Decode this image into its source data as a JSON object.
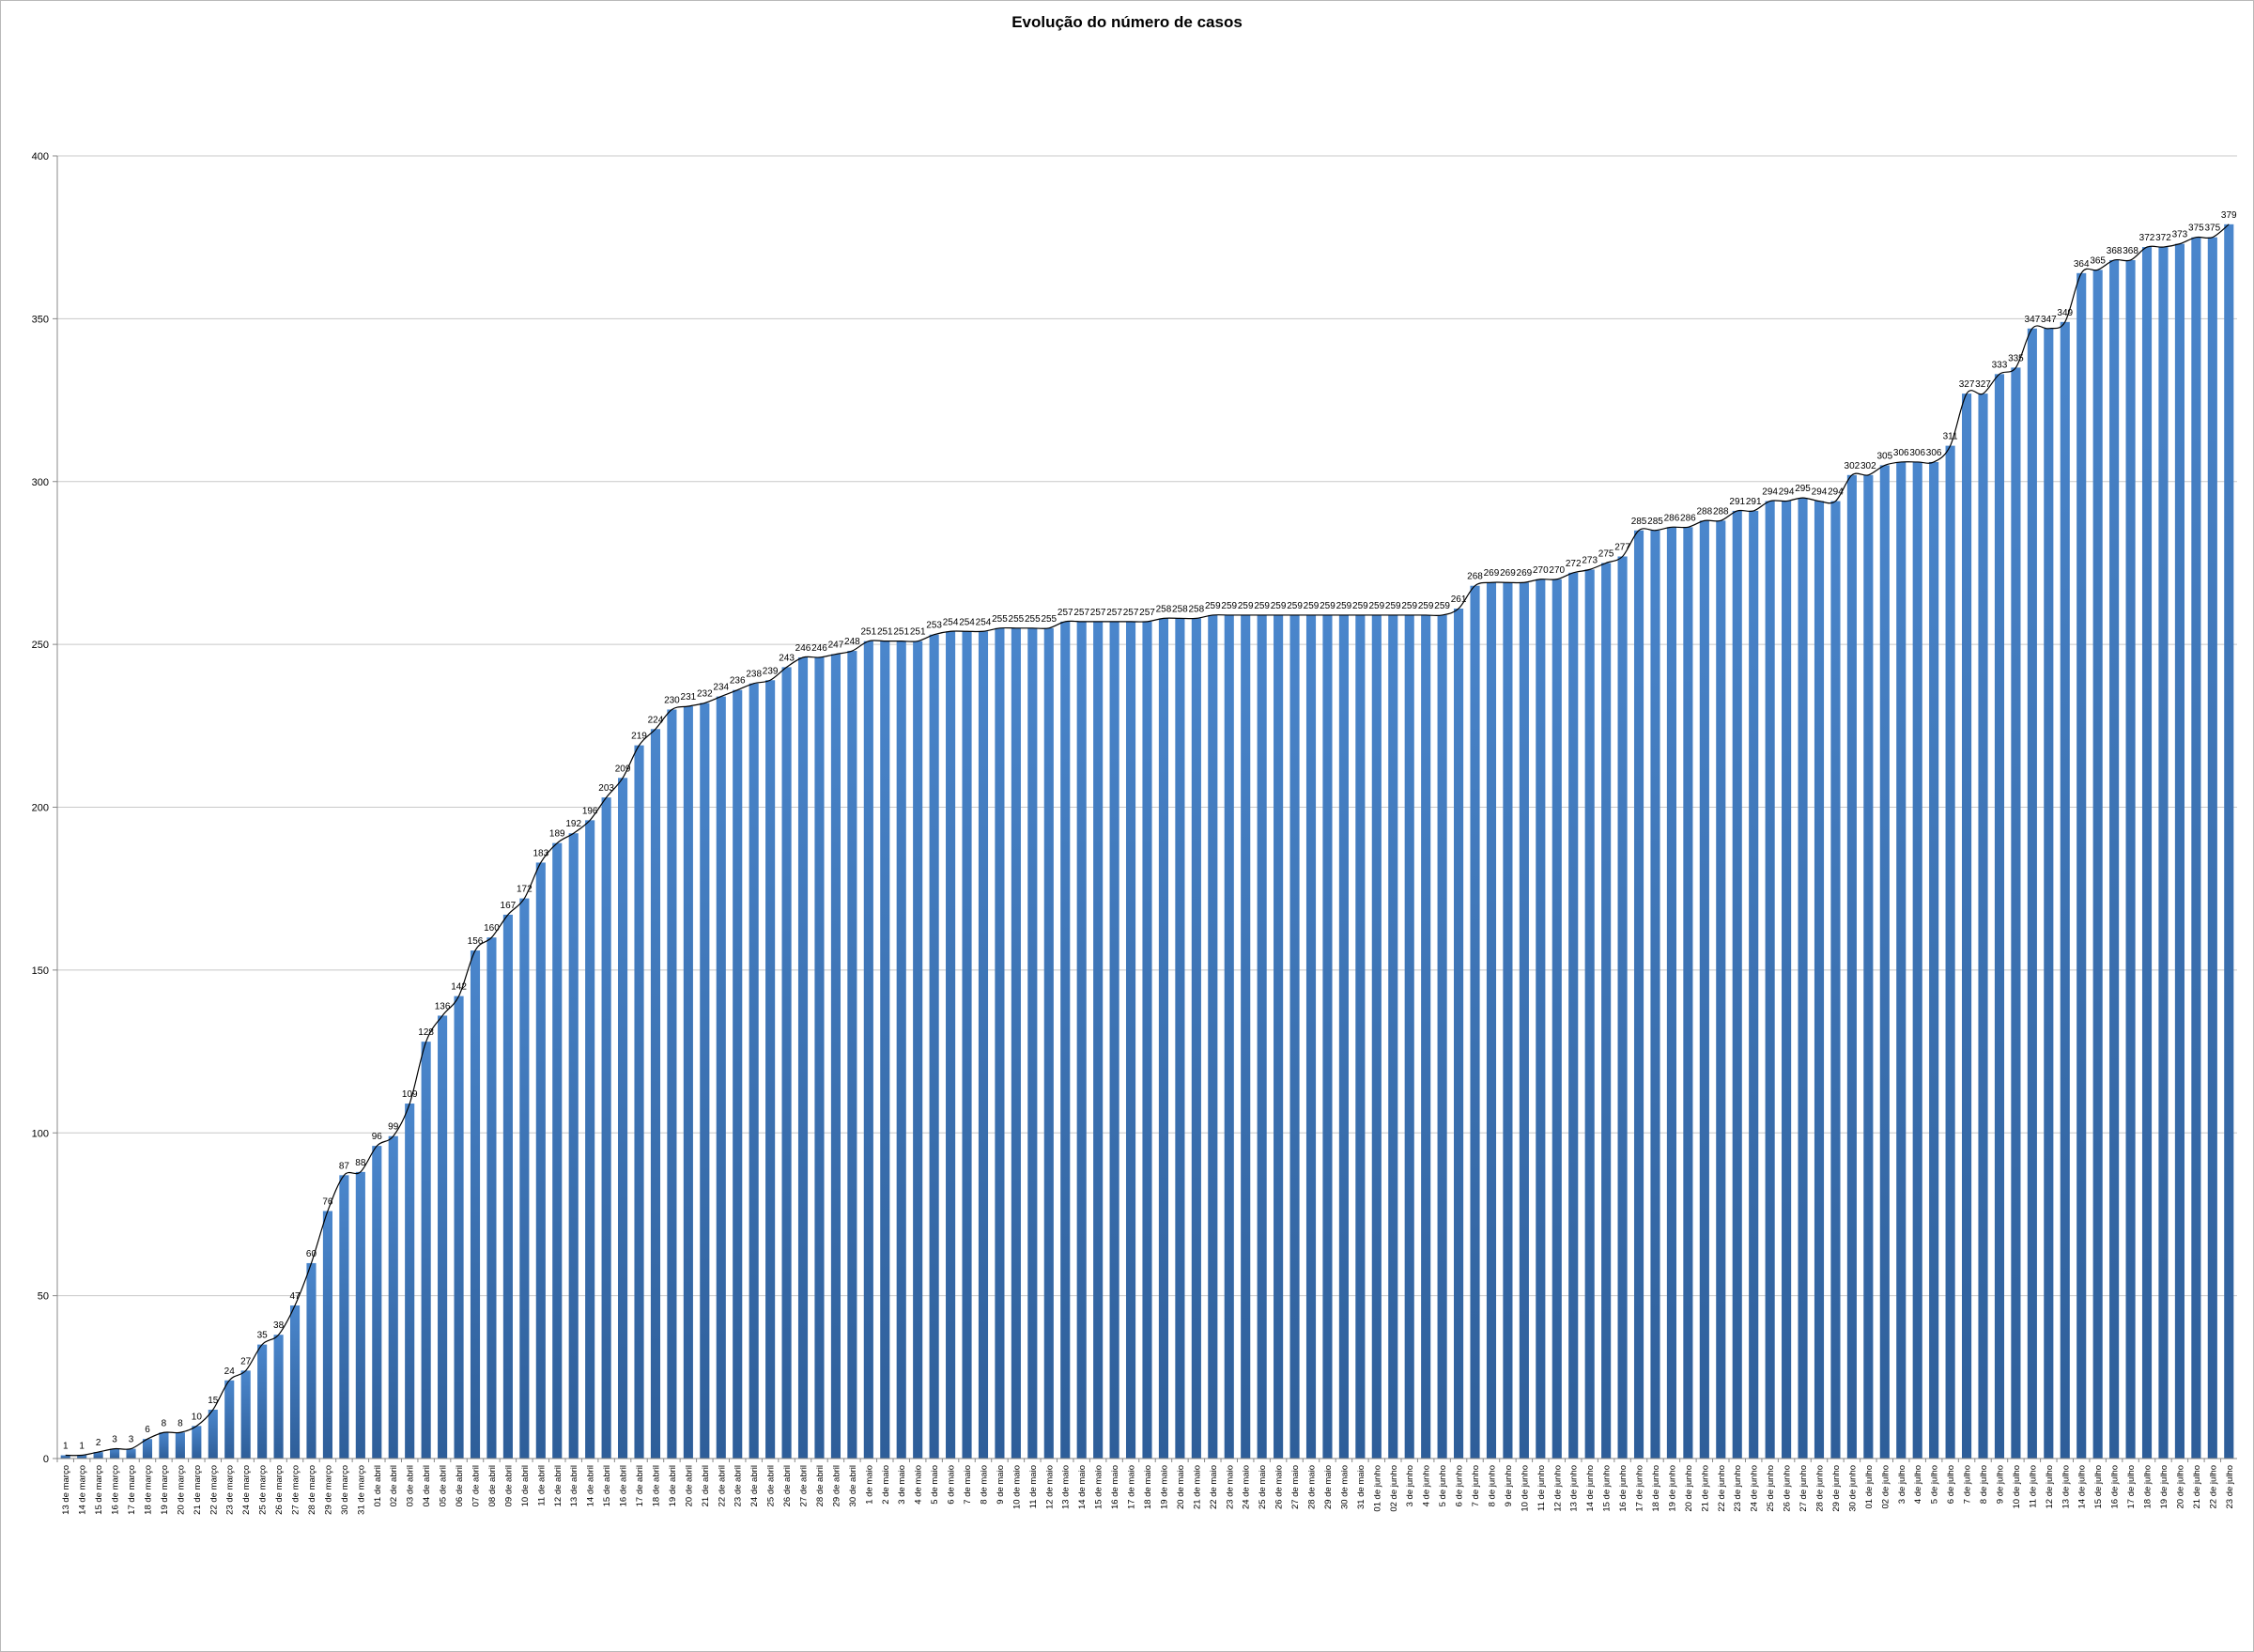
{
  "chart_data": {
    "type": "bar",
    "title": "Evolução do número de casos",
    "xlabel": "",
    "ylabel": "",
    "ylim": [
      0,
      400
    ],
    "yticks": [
      0,
      50,
      100,
      150,
      200,
      250,
      300,
      350,
      400
    ],
    "grid": true,
    "legend": "none",
    "trendline": true,
    "colors": {
      "bar": "#4a86cc",
      "bar_dark": "#2e5e99",
      "line": "#000000",
      "grid": "#c8c8c8"
    },
    "categories": [
      "13 de março",
      "14 de março",
      "15 de março",
      "16 de março",
      "17 de março",
      "18 de março",
      "19 de março",
      "20 de março",
      "21 de março",
      "22 de março",
      "23 de março",
      "24 de março",
      "25 de março",
      "26 de março",
      "27 de março",
      "28 de março",
      "29 de março",
      "30 de março",
      "31 de março",
      "01 de abril",
      "02 de abril",
      "03 de abril",
      "04 de abril",
      "05 de abril",
      "06 de abril",
      "07 de abril",
      "08 de abril",
      "09 de abril",
      "10 de abril",
      "11 de abril",
      "12 de abril",
      "13 de abril",
      "14 de abril",
      "15 de abril",
      "16 de abril",
      "17 de abril",
      "18 de abril",
      "19 de abril",
      "20 de abril",
      "21 de abril",
      "22 de abril",
      "23 de abril",
      "24 de abril",
      "25 de abril",
      "26 de abril",
      "27 de abril",
      "28 de abril",
      "29 de abril",
      "30 de abril",
      "1 de maio",
      "2 de maio",
      "3 de maio",
      "4 de maio",
      "5 de maio",
      "6 de maio",
      "7 de maio",
      "8 de maio",
      "9 de maio",
      "10 de maio",
      "11 de maio",
      "12 de maio",
      "13 de maio",
      "14 de maio",
      "15 de maio",
      "16 de maio",
      "17 de maio",
      "18 de maio",
      "19 de maio",
      "20 de maio",
      "21 de maio",
      "22 de maio",
      "23 de maio",
      "24 de maio",
      "25 de maio",
      "26 de maio",
      "27 de maio",
      "28 de maio",
      "29 de maio",
      "30 de maio",
      "31 de maio",
      "01 de junho",
      "02 de junho",
      "3 de junho",
      "4 de junho",
      "5 de junho",
      "6 de junho",
      "7 de junho",
      "8 de junho",
      "9 de junho",
      "10 de junho",
      "11 de junho",
      "12 de junho",
      "13 de junho",
      "14 de junho",
      "15 de junho",
      "16 de junho",
      "17 de junho",
      "18 de junho",
      "19 de junho",
      "20 de junho",
      "21 de junho",
      "22 de junho",
      "23 de junho",
      "24 de junho",
      "25 de junho",
      "26 de junho",
      "27 de junho",
      "28 de junho",
      "29 de junho",
      "30 de junho",
      "01 de julho",
      "02 de julho",
      "3 de julho",
      "4 de julho",
      "5 de julho",
      "6 de julho",
      "7 de julho",
      "8 de julho",
      "9 de julho",
      "10 de julho",
      "11 de julho",
      "12 de julho",
      "13 de julho",
      "14 de julho",
      "15 de julho",
      "16 de julho",
      "17 de julho",
      "18 de julho",
      "19 de julho",
      "20 de julho",
      "21 de julho",
      "22 de julho",
      "23 de julho"
    ],
    "values": [
      1,
      1,
      2,
      3,
      3,
      6,
      8,
      8,
      10,
      15,
      24,
      27,
      35,
      38,
      47,
      60,
      76,
      87,
      88,
      96,
      99,
      109,
      128,
      136,
      142,
      156,
      160,
      167,
      172,
      183,
      189,
      192,
      196,
      203,
      209,
      219,
      224,
      230,
      231,
      232,
      234,
      236,
      238,
      239,
      243,
      246,
      246,
      247,
      248,
      251,
      251,
      251,
      251,
      253,
      254,
      254,
      254,
      255,
      255,
      255,
      255,
      257,
      257,
      257,
      257,
      257,
      257,
      258,
      258,
      258,
      259,
      259,
      259,
      259,
      259,
      259,
      259,
      259,
      259,
      259,
      259,
      259,
      259,
      259,
      259,
      261,
      268,
      269,
      269,
      269,
      270,
      270,
      272,
      273,
      275,
      277,
      285,
      285,
      286,
      286,
      288,
      288,
      291,
      291,
      294,
      294,
      295,
      294,
      294,
      302,
      302,
      305,
      306,
      306,
      306,
      311,
      327,
      327,
      333,
      335,
      347,
      347,
      349,
      364,
      365,
      368,
      368,
      372,
      372,
      373,
      375,
      375,
      379
    ]
  }
}
